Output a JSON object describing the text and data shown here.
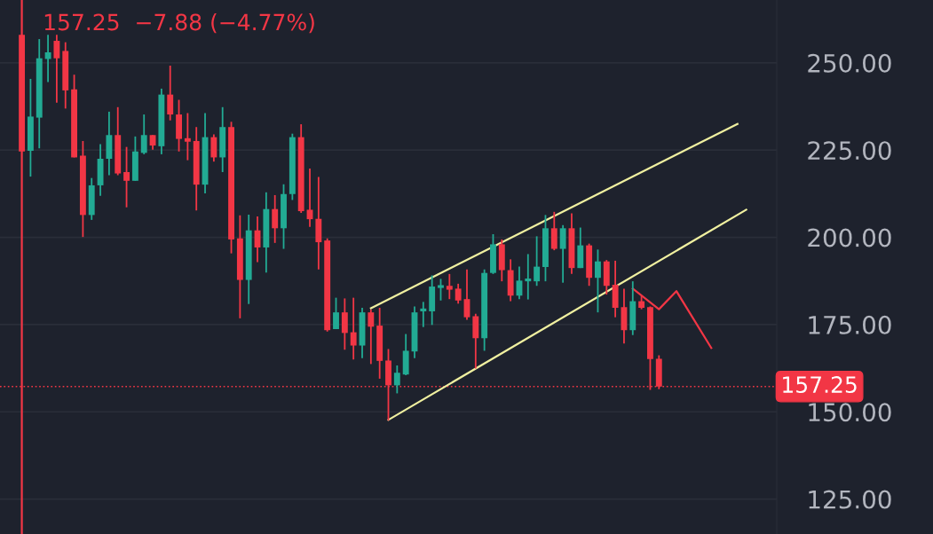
{
  "chart_data": {
    "type": "candlestick",
    "categories": [
      null,
      null,
      null,
      null,
      null,
      null,
      null,
      null,
      null,
      null,
      null,
      null,
      null,
      null,
      null,
      null,
      null,
      null,
      null,
      null,
      null,
      null,
      null,
      null,
      null,
      null,
      null,
      null,
      null,
      null,
      null,
      null,
      null,
      null,
      null,
      null,
      null,
      null,
      null,
      null,
      null,
      null,
      null,
      null,
      null,
      null,
      null,
      null,
      null,
      null,
      null,
      null,
      null,
      null,
      null,
      null,
      null,
      null,
      null,
      null,
      null,
      null,
      null,
      null,
      null,
      null,
      null,
      null,
      null,
      null,
      null,
      null,
      null,
      null,
      null,
      null,
      null,
      null,
      null,
      null,
      null,
      null,
      null,
      null,
      null,
      null,
      null,
      null,
      null
    ],
    "ohlc": [
      null,
      null,
      [
        258,
        258,
        224.6,
        224.6
      ],
      [
        224.8,
        245.4,
        217.4,
        234.6
      ],
      [
        234.3,
        256.8,
        225.5,
        251.3
      ],
      [
        251.1,
        258,
        244.5,
        253
      ],
      [
        256.3,
        258,
        238.6,
        251.3
      ],
      [
        253.4,
        255.9,
        236.9,
        242.1
      ],
      [
        242.4,
        246.6,
        222.9,
        222.9
      ],
      [
        223.4,
        227.6,
        200.1,
        206.4
      ],
      [
        206.4,
        217,
        205,
        214.9
      ],
      [
        214.9,
        226.7,
        211.9,
        222.5
      ],
      [
        222.5,
        236,
        217.8,
        229.3
      ],
      [
        229.3,
        237.3,
        217.8,
        218.3
      ],
      [
        218.7,
        225.9,
        208.6,
        216.2
      ],
      [
        216.2,
        228.9,
        216.2,
        224.6
      ],
      [
        224.2,
        235.2,
        223.8,
        229.3
      ],
      [
        229.3,
        229.3,
        225.1,
        226.3
      ],
      [
        226.1,
        242.6,
        223.8,
        240.9
      ],
      [
        240.9,
        249.2,
        233.5,
        235.2
      ],
      [
        235.2,
        239.4,
        224.6,
        228.2
      ],
      [
        228.4,
        235.6,
        222.1,
        227.4
      ],
      [
        227.6,
        231.6,
        207.7,
        215.1
      ],
      [
        215.1,
        235.6,
        212.6,
        228.7
      ],
      [
        228.7,
        229.5,
        221.7,
        222.9
      ],
      [
        222.9,
        237.3,
        218.7,
        231.6
      ],
      [
        231.6,
        233.1,
        195.4,
        199.4
      ],
      [
        199.7,
        206.3,
        176.8,
        187.8
      ],
      [
        187.8,
        206.5,
        180.9,
        202
      ],
      [
        202,
        206,
        192.9,
        197.1
      ],
      [
        197.1,
        212.9,
        189.9,
        208.1
      ],
      [
        208.1,
        212.1,
        198.4,
        202.6
      ],
      [
        202.6,
        215.2,
        196.7,
        212.4
      ],
      [
        212.4,
        229.7,
        210.7,
        228.7
      ],
      [
        228.7,
        232.4,
        207,
        207.5
      ],
      [
        207.9,
        219.7,
        203,
        205.2
      ],
      [
        205.3,
        217.3,
        190.8,
        198.6
      ],
      [
        199.1,
        199.7,
        173,
        173.4
      ],
      [
        173.7,
        182.7,
        173.7,
        178.5
      ],
      [
        178.5,
        182.5,
        167.8,
        172.6
      ],
      [
        172.8,
        182.7,
        165,
        169
      ],
      [
        169,
        179.8,
        165.4,
        178.5
      ],
      [
        178.5,
        179.3,
        163.7,
        174.4
      ],
      [
        174.7,
        179.8,
        159.5,
        164.6
      ],
      [
        164.7,
        168,
        147.5,
        157.6
      ],
      [
        157.6,
        163.3,
        155.3,
        161.2
      ],
      [
        160.7,
        172.3,
        160.5,
        167.5
      ],
      [
        167.3,
        180.2,
        165.4,
        178.5
      ],
      [
        178.8,
        181.5,
        174.3,
        179.3
      ],
      [
        178.8,
        189.1,
        174.9,
        185.9
      ],
      [
        185.5,
        188.1,
        181.9,
        185.9
      ],
      [
        186.1,
        189.5,
        182.3,
        185
      ],
      [
        185.3,
        186.7,
        181,
        181.9
      ],
      [
        182.3,
        190.8,
        176.4,
        177.1
      ],
      [
        177.4,
        178.1,
        162.4,
        171.1
      ],
      [
        171.1,
        190.8,
        167.5,
        189.8
      ],
      [
        189.8,
        200.9,
        189.5,
        198
      ],
      [
        198,
        199.4,
        187.4,
        190.6
      ],
      [
        190.6,
        193.7,
        181.7,
        183.3
      ],
      [
        183.3,
        191.6,
        182.3,
        187.6
      ],
      [
        187.4,
        195.2,
        182.2,
        187.8
      ],
      [
        187.4,
        200.3,
        186.1,
        191.6
      ],
      [
        191.5,
        206.4,
        187.4,
        202.6
      ],
      [
        202.6,
        207.3,
        196.3,
        196.7
      ],
      [
        196.7,
        203.5,
        187,
        202.6
      ],
      [
        202.6,
        206.9,
        189.5,
        191.2
      ],
      [
        191.2,
        202.8,
        191.2,
        197.7
      ],
      [
        197.7,
        198.2,
        186.1,
        188.4
      ],
      [
        188.4,
        196.5,
        178.5,
        193.1
      ],
      [
        193.1,
        193.5,
        183.6,
        186.1
      ],
      [
        186.4,
        193.3,
        177.1,
        179.8
      ],
      [
        180,
        185.3,
        169.6,
        173.4
      ],
      [
        173.4,
        187.4,
        172,
        181.7
      ],
      [
        181.7,
        183.2,
        179.4,
        179.8
      ],
      [
        180,
        180.2,
        156.3,
        165.13
      ],
      [
        165.2,
        166.2,
        156.5,
        157.25
      ],
      null,
      null,
      null,
      null,
      null,
      null,
      null,
      null,
      null,
      null,
      null,
      null,
      null
    ],
    "colors": [
      null,
      null,
      "#f23645",
      "#22ab94",
      "#22ab94",
      "#22ab94",
      "#f23645",
      "#f23645",
      "#f23645",
      "#f23645",
      "#22ab94",
      "#22ab94",
      "#22ab94",
      "#f23645",
      "#f23645",
      "#22ab94",
      "#22ab94",
      "#f23645",
      "#22ab94",
      "#f23645",
      "#f23645",
      "#f23645",
      "#f23645",
      "#22ab94",
      "#f23645",
      "#22ab94",
      "#f23645",
      "#f23645",
      "#22ab94",
      "#f23645",
      "#22ab94",
      "#f23645",
      "#22ab94",
      "#22ab94",
      "#f23645",
      "#f23645",
      "#f23645",
      "#f23645",
      "#22ab94",
      "#f23645",
      "#f23645",
      "#22ab94",
      "#f23645",
      "#f23645",
      "#f23645",
      "#22ab94",
      "#22ab94",
      "#22ab94",
      "#22ab94",
      "#22ab94",
      "#22ab94",
      "#f23645",
      "#f23645",
      "#f23645",
      "#f23645",
      "#22ab94",
      "#22ab94",
      "#f23645",
      "#f23645",
      "#22ab94",
      "#22ab94",
      "#22ab94",
      "#22ab94",
      "#f23645",
      "#22ab94",
      "#f23645",
      "#22ab94",
      "#f23645",
      "#22ab94",
      "#f23645",
      "#f23645",
      "#f23645",
      "#22ab94",
      "#f23645",
      "#f23645",
      "#f23645",
      null,
      null,
      null,
      null,
      null,
      null,
      null,
      null,
      null,
      null,
      null,
      null,
      null
    ],
    "series": [
      {
        "type": "line",
        "color": "#f0f0a0",
        "values": [
          null,
          null,
          null,
          null,
          null,
          null,
          null,
          null,
          null,
          null,
          null,
          null,
          null,
          null,
          null,
          null,
          null,
          null,
          null,
          null,
          null,
          null,
          null,
          null,
          null,
          null,
          null,
          null,
          null,
          null,
          null,
          null,
          null,
          null,
          null,
          null,
          null,
          null,
          null,
          null,
          null,
          null,
          179.7,
          null,
          null,
          null,
          null,
          null,
          null,
          null,
          null,
          null,
          null,
          null,
          null,
          null,
          null,
          null,
          null,
          null,
          null,
          null,
          null,
          null,
          null,
          null,
          null,
          null,
          null,
          null,
          null,
          null,
          null,
          null,
          null,
          null,
          null,
          null,
          null,
          null,
          null,
          null,
          null,
          null,
          232.5,
          null,
          null,
          null,
          null
        ]
      },
      {
        "type": "line",
        "color": "#f0f0a0",
        "values": [
          null,
          null,
          null,
          null,
          null,
          null,
          null,
          null,
          null,
          null,
          null,
          null,
          null,
          null,
          null,
          null,
          null,
          null,
          null,
          null,
          null,
          null,
          null,
          null,
          null,
          null,
          null,
          null,
          null,
          null,
          null,
          null,
          null,
          null,
          null,
          null,
          null,
          null,
          null,
          null,
          null,
          null,
          null,
          null,
          147.7,
          null,
          null,
          null,
          null,
          null,
          null,
          null,
          null,
          null,
          null,
          null,
          null,
          null,
          null,
          null,
          null,
          null,
          null,
          null,
          null,
          null,
          null,
          null,
          null,
          null,
          null,
          null,
          null,
          null,
          null,
          null,
          null,
          null,
          null,
          null,
          null,
          null,
          null,
          null,
          null,
          207.9,
          null,
          null,
          null
        ]
      },
      {
        "type": "line",
        "color": "#f23645",
        "values": [
          null,
          null,
          null,
          null,
          null,
          null,
          null,
          null,
          null,
          null,
          null,
          null,
          null,
          null,
          null,
          null,
          null,
          null,
          null,
          null,
          null,
          null,
          null,
          null,
          null,
          null,
          null,
          null,
          null,
          null,
          null,
          null,
          null,
          null,
          null,
          null,
          null,
          null,
          null,
          null,
          null,
          null,
          null,
          null,
          null,
          null,
          null,
          null,
          null,
          null,
          null,
          null,
          null,
          null,
          null,
          null,
          null,
          null,
          null,
          null,
          null,
          null,
          null,
          null,
          null,
          null,
          null,
          null,
          null,
          null,
          null,
          null,
          185.3,
          null,
          null,
          179.4,
          null,
          184.6,
          null,
          null,
          null,
          168.3,
          null,
          null,
          null,
          null,
          null,
          null,
          null
        ]
      }
    ],
    "ylim": [
      115,
      268
    ],
    "yticks": [
      {
        "value": 125,
        "label": "125.00"
      },
      {
        "value": 150,
        "label": "150.00"
      },
      {
        "value": 175,
        "label": "175.00"
      },
      {
        "value": 200,
        "label": "200.00"
      },
      {
        "value": 225,
        "label": "225.00"
      },
      {
        "value": 250,
        "label": "250.00"
      }
    ],
    "tick_labels": "y",
    "grid": "y",
    "ref_lines": [
      {
        "axis": "y",
        "value": 157.25,
        "label": "157.25",
        "color": "#f23645",
        "line_style": "dotted"
      }
    ],
    "annotations": [
      "157.25  −7.88 (−4.77%)"
    ]
  }
}
